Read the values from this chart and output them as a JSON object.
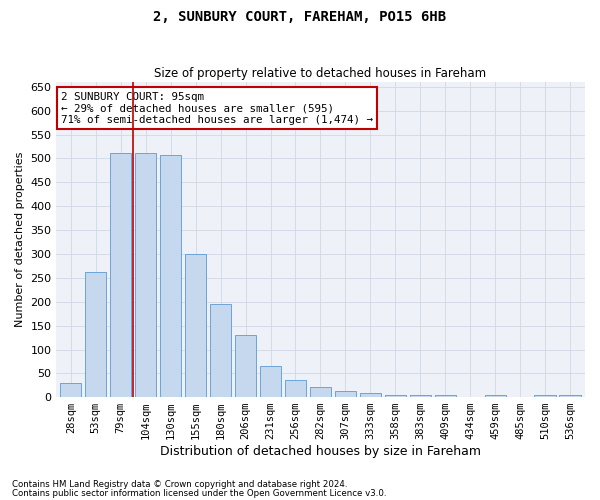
{
  "title": "2, SUNBURY COURT, FAREHAM, PO15 6HB",
  "subtitle": "Size of property relative to detached houses in Fareham",
  "xlabel": "Distribution of detached houses by size in Fareham",
  "ylabel": "Number of detached properties",
  "categories": [
    "28sqm",
    "53sqm",
    "79sqm",
    "104sqm",
    "130sqm",
    "155sqm",
    "180sqm",
    "206sqm",
    "231sqm",
    "256sqm",
    "282sqm",
    "307sqm",
    "333sqm",
    "358sqm",
    "383sqm",
    "409sqm",
    "434sqm",
    "459sqm",
    "485sqm",
    "510sqm",
    "536sqm"
  ],
  "values": [
    30,
    263,
    511,
    511,
    507,
    301,
    195,
    130,
    65,
    37,
    21,
    14,
    8,
    5,
    4,
    4,
    1,
    4,
    1,
    4,
    4
  ],
  "bar_color": "#c5d8ed",
  "bar_edge_color": "#5b9bd5",
  "grid_color": "#d0d8e8",
  "bg_color": "#eef2f8",
  "vline_color": "#c00000",
  "vline_x_index": 2.5,
  "annotation_text": "2 SUNBURY COURT: 95sqm\n← 29% of detached houses are smaller (595)\n71% of semi-detached houses are larger (1,474) →",
  "annotation_box_color": "#ffffff",
  "annotation_box_edge": "#c00000",
  "ylim": [
    0,
    660
  ],
  "yticks": [
    0,
    50,
    100,
    150,
    200,
    250,
    300,
    350,
    400,
    450,
    500,
    550,
    600,
    650
  ],
  "footnote1": "Contains HM Land Registry data © Crown copyright and database right 2024.",
  "footnote2": "Contains public sector information licensed under the Open Government Licence v3.0."
}
